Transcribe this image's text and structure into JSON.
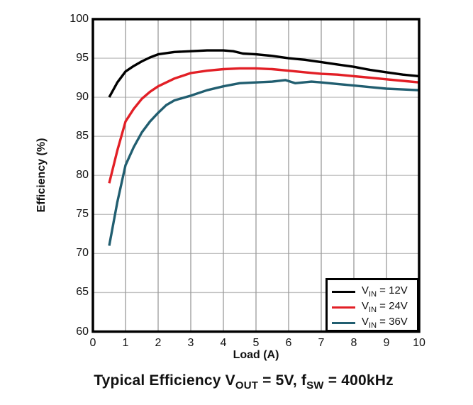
{
  "chart_data": {
    "type": "line",
    "title": "Typical Efficiency VOUT = 5V, fSW = 400kHz",
    "xlabel": "Load (A)",
    "ylabel": "Efficiency (%)",
    "xlim": [
      0,
      10
    ],
    "ylim": [
      60,
      100
    ],
    "x_ticks": [
      0,
      1,
      2,
      3,
      4,
      5,
      6,
      7,
      8,
      9,
      10
    ],
    "y_ticks": [
      100,
      95,
      90,
      85,
      80,
      75,
      70,
      65,
      60
    ],
    "grid": true,
    "legend_position": "bottom-right",
    "series": [
      {
        "name": "VIN = 12V",
        "color": "#000000",
        "points": [
          [
            0.5,
            90.0
          ],
          [
            0.75,
            91.9
          ],
          [
            1,
            93.3
          ],
          [
            1.25,
            94.0
          ],
          [
            1.5,
            94.6
          ],
          [
            1.75,
            95.1
          ],
          [
            2,
            95.5
          ],
          [
            2.5,
            95.8
          ],
          [
            3,
            95.9
          ],
          [
            3.5,
            96.0
          ],
          [
            4,
            96.0
          ],
          [
            4.3,
            95.9
          ],
          [
            4.6,
            95.6
          ],
          [
            5,
            95.5
          ],
          [
            5.5,
            95.3
          ],
          [
            6,
            95.0
          ],
          [
            6.5,
            94.8
          ],
          [
            7,
            94.5
          ],
          [
            7.5,
            94.2
          ],
          [
            8,
            93.9
          ],
          [
            8.5,
            93.5
          ],
          [
            9,
            93.2
          ],
          [
            9.5,
            92.9
          ],
          [
            10,
            92.7
          ]
        ]
      },
      {
        "name": "VIN = 24V",
        "color": "#e21f26",
        "points": [
          [
            0.5,
            79.0
          ],
          [
            0.75,
            83.2
          ],
          [
            1,
            86.9
          ],
          [
            1.25,
            88.5
          ],
          [
            1.5,
            89.8
          ],
          [
            1.75,
            90.7
          ],
          [
            2,
            91.4
          ],
          [
            2.5,
            92.4
          ],
          [
            3,
            93.1
          ],
          [
            3.5,
            93.4
          ],
          [
            4,
            93.6
          ],
          [
            4.5,
            93.7
          ],
          [
            5,
            93.7
          ],
          [
            5.5,
            93.6
          ],
          [
            6,
            93.4
          ],
          [
            6.5,
            93.2
          ],
          [
            7,
            93.0
          ],
          [
            7.5,
            92.9
          ],
          [
            8,
            92.7
          ],
          [
            8.5,
            92.5
          ],
          [
            9,
            92.3
          ],
          [
            9.5,
            92.1
          ],
          [
            10,
            91.9
          ]
        ]
      },
      {
        "name": "VIN = 36V",
        "color": "#215e70",
        "points": [
          [
            0.5,
            71.0
          ],
          [
            0.75,
            76.6
          ],
          [
            1,
            81.3
          ],
          [
            1.25,
            83.6
          ],
          [
            1.5,
            85.5
          ],
          [
            1.75,
            86.9
          ],
          [
            2,
            88.0
          ],
          [
            2.25,
            89.0
          ],
          [
            2.5,
            89.6
          ],
          [
            3,
            90.2
          ],
          [
            3.5,
            90.9
          ],
          [
            4,
            91.4
          ],
          [
            4.5,
            91.8
          ],
          [
            5,
            91.9
          ],
          [
            5.5,
            92.0
          ],
          [
            5.9,
            92.2
          ],
          [
            6.2,
            91.8
          ],
          [
            6.7,
            92.0
          ],
          [
            7,
            91.9
          ],
          [
            7.5,
            91.7
          ],
          [
            8,
            91.5
          ],
          [
            8.5,
            91.3
          ],
          [
            9,
            91.1
          ],
          [
            9.5,
            91.0
          ],
          [
            10,
            90.9
          ]
        ]
      }
    ]
  },
  "title_parts": {
    "t1": "Typical Efficiency V",
    "sub1": "OUT",
    "t2": " = 5V, f",
    "sub2": "SW",
    "t3": " = 400kHz"
  },
  "legend": {
    "items": [
      {
        "prefix": "V",
        "sub": "IN",
        "rest": " = 12V"
      },
      {
        "prefix": "V",
        "sub": "IN",
        "rest": " = 24V"
      },
      {
        "prefix": "V",
        "sub": "IN",
        "rest": " = 36V"
      }
    ]
  },
  "colors": {
    "frame": "#000000",
    "grid_vertical": "#9a9a9a",
    "grid_horizontal": "#c2c2c2",
    "background": "#ffffff",
    "text": "#111111"
  }
}
